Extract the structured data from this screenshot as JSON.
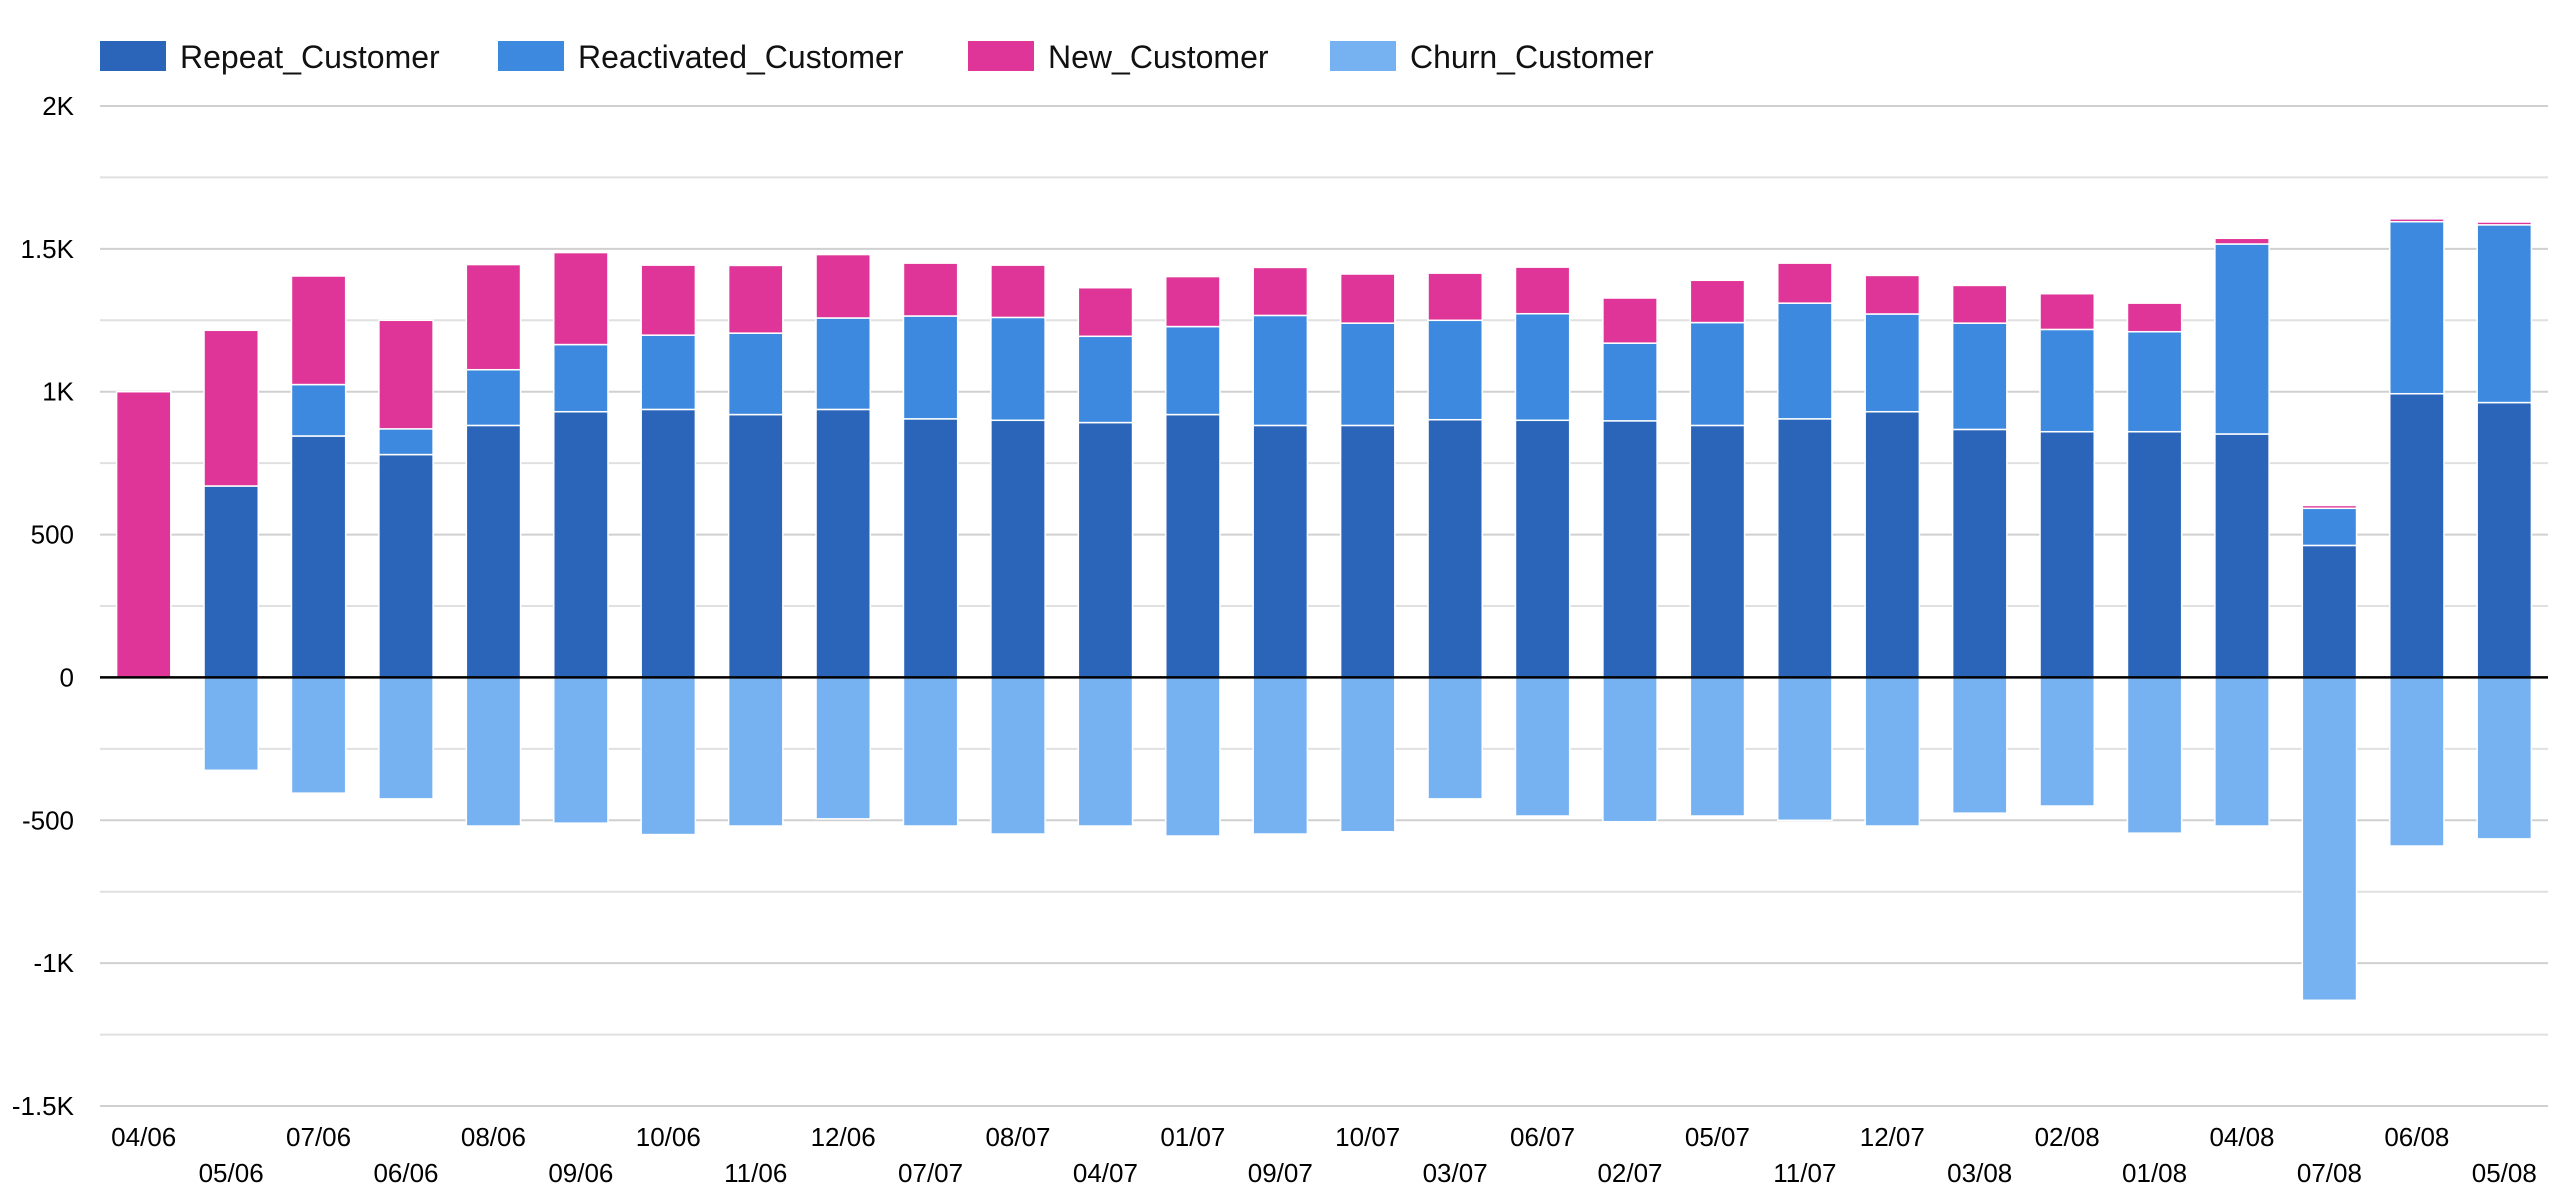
{
  "chart_data": {
    "type": "bar",
    "stacked": true,
    "title": "",
    "xlabel": "",
    "ylabel": "",
    "ylim": [
      -1500,
      2000
    ],
    "yticks": [
      -1500,
      -1000,
      -500,
      0,
      500,
      1000,
      1500,
      2000
    ],
    "ytick_labels": [
      "-1.5K",
      "-1K",
      "-500",
      "0",
      "500",
      "1K",
      "1.5K",
      "2K"
    ],
    "grid": true,
    "legend_position": "top-left",
    "categories": [
      "04/06",
      "05/06",
      "07/06",
      "06/06",
      "08/06",
      "09/06",
      "10/06",
      "11/06",
      "12/06",
      "07/07",
      "08/07",
      "04/07",
      "01/07",
      "09/07",
      "10/07",
      "03/07",
      "06/07",
      "02/07",
      "05/07",
      "11/07",
      "12/07",
      "03/08",
      "02/08",
      "01/08",
      "04/08",
      "07/08",
      "06/08",
      "05/08"
    ],
    "series": [
      {
        "name": "Repeat_Customer",
        "color": "#2b65b9",
        "values": [
          0,
          670,
          845,
          780,
          882,
          930,
          938,
          920,
          938,
          905,
          900,
          892,
          920,
          882,
          882,
          902,
          900,
          898,
          882,
          905,
          930,
          868,
          860,
          860,
          852,
          462,
          993,
          962
        ]
      },
      {
        "name": "Reactivated_Customer",
        "color": "#3d89e0",
        "values": [
          0,
          0,
          180,
          90,
          195,
          235,
          260,
          285,
          320,
          360,
          360,
          302,
          308,
          385,
          358,
          348,
          373,
          272,
          360,
          405,
          342,
          372,
          358,
          350,
          665,
          130,
          602,
          622
        ]
      },
      {
        "name": "New_Customer",
        "color": "#e03598",
        "values": [
          1000,
          545,
          380,
          380,
          368,
          322,
          245,
          237,
          222,
          185,
          183,
          170,
          175,
          168,
          172,
          165,
          163,
          158,
          148,
          140,
          135,
          132,
          125,
          100,
          20,
          10,
          10,
          10
        ]
      },
      {
        "name": "Churn_Customer",
        "color": "#76b2f2",
        "values": [
          0,
          -325,
          -405,
          -425,
          -520,
          -510,
          -550,
          -520,
          -495,
          -520,
          -548,
          -520,
          -555,
          -548,
          -540,
          -425,
          -485,
          -505,
          -485,
          -500,
          -520,
          -475,
          -450,
          -545,
          -520,
          -1130,
          -590,
          -565
        ]
      }
    ]
  }
}
